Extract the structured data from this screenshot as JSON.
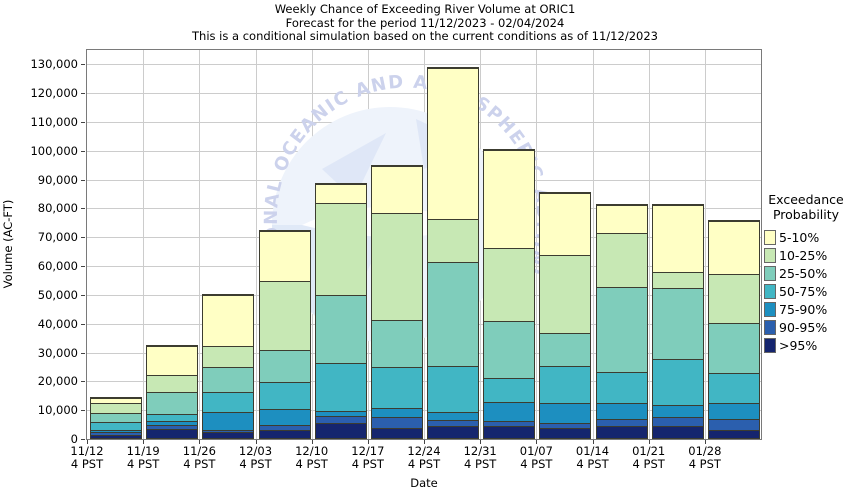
{
  "colors": {
    "grid": "#cccccc",
    "plot_border": "#7a7a7a",
    "segment_border": "#3c3c30",
    "tick": "#444444",
    "watermark_text": "#ccd2ec",
    "watermark_fill": "#dde6f6",
    "watermark_disc": "#eef3fb"
  },
  "chart_data": {
    "type": "bar",
    "stacked": true,
    "title": "Weekly Chance of Exceeding River Volume at ORIC1",
    "subtitle": "Forecast for the period 11/12/2023 - 02/04/2024",
    "note": "This is a conditional simulation based on the current conditions as of 11/12/2023",
    "xlabel": "Date",
    "ylabel": "Volume (AC-FT)",
    "ylim": [
      0,
      130000
    ],
    "axis_max": 135000,
    "grid": true,
    "yticks": [
      {
        "value": 0,
        "label": "0"
      },
      {
        "value": 10000,
        "label": "10,000"
      },
      {
        "value": 20000,
        "label": "20,000"
      },
      {
        "value": 30000,
        "label": "30,000"
      },
      {
        "value": 40000,
        "label": "40,000"
      },
      {
        "value": 50000,
        "label": "50,000"
      },
      {
        "value": 60000,
        "label": "60,000"
      },
      {
        "value": 70000,
        "label": "70,000"
      },
      {
        "value": 80000,
        "label": "80,000"
      },
      {
        "value": 90000,
        "label": "90,000"
      },
      {
        "value": 100000,
        "label": "100,000"
      },
      {
        "value": 110000,
        "label": "110,000"
      },
      {
        "value": 120000,
        "label": "120,000"
      },
      {
        "value": 130000,
        "label": "130,000"
      }
    ],
    "categories": [
      "11/12",
      "11/19",
      "11/26",
      "12/03",
      "12/10",
      "12/17",
      "12/24",
      "12/31",
      "01/07",
      "01/14",
      "01/21",
      "01/28"
    ],
    "x_time_label": "4 PST",
    "legend": {
      "title_line1": "Exceedance",
      "title_line2": "Probability",
      "position": "right"
    },
    "series": [
      {
        "name": "5-10%",
        "color": "#ffffc5",
        "values": [
          1800,
          10000,
          17500,
          17500,
          6500,
          16500,
          52500,
          34000,
          21500,
          10000,
          23300,
          18500
        ]
      },
      {
        "name": "10-25%",
        "color": "#c7e8b4",
        "values": [
          3200,
          6000,
          7500,
          24000,
          32000,
          37000,
          15000,
          25500,
          27000,
          18500,
          5700,
          17000
        ]
      },
      {
        "name": "25-50%",
        "color": "#7fcdbb",
        "values": [
          3200,
          7500,
          8500,
          11000,
          23500,
          16500,
          36000,
          19500,
          11500,
          29500,
          24700,
          17300
        ]
      },
      {
        "name": "50-75%",
        "color": "#41b6c4",
        "values": [
          2700,
          2500,
          7000,
          9500,
          16600,
          14200,
          16000,
          8400,
          13000,
          11000,
          15900,
          10500
        ]
      },
      {
        "name": "75-90%",
        "color": "#1d8fc0",
        "values": [
          900,
          1500,
          6200,
          5500,
          1600,
          2900,
          2800,
          6600,
          6900,
          5400,
          4200,
          5600
        ]
      },
      {
        "name": "90-95%",
        "color": "#2b5fae",
        "values": [
          1000,
          1500,
          800,
          1600,
          2600,
          4000,
          2200,
          1700,
          1700,
          2600,
          3200,
          3800
        ]
      },
      {
        "name": ">95%",
        "color": "#15256e",
        "values": [
          1000,
          3000,
          2000,
          2900,
          5200,
          3400,
          4000,
          4300,
          3400,
          4000,
          4000,
          2800
        ]
      }
    ],
    "watermark": {
      "text": "NATIONAL OCEANIC AND ATMOSPHERIC ADMINISTRATION"
    }
  }
}
